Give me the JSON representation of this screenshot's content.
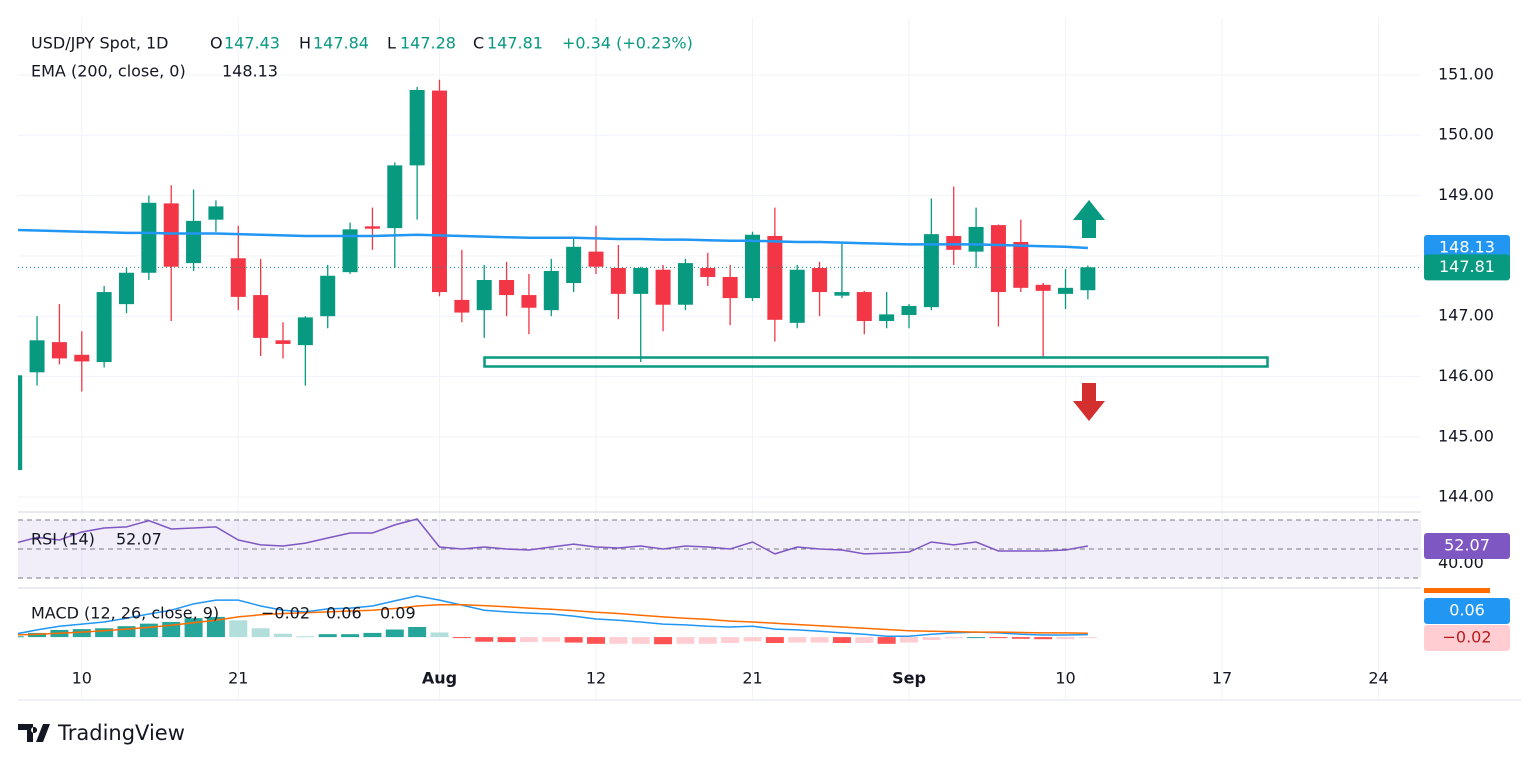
{
  "chart_data": {
    "type": "candlestick",
    "title": "USD/JPY Spot, 1D",
    "ohlc_letters": [
      "O",
      "H",
      "L",
      "C"
    ],
    "change": "+0.34 (+0.23%)",
    "xlim": [
      -0.3,
      62.9
    ],
    "xticks": [
      {
        "value": 3,
        "label": "10"
      },
      {
        "value": 10,
        "label": "21"
      },
      {
        "value": 19,
        "label": "Aug"
      },
      {
        "value": 26,
        "label": "12"
      },
      {
        "value": 33,
        "label": "21"
      },
      {
        "value": 40,
        "label": "Sep"
      },
      {
        "value": 47,
        "label": "10"
      },
      {
        "value": 54,
        "label": "17"
      },
      {
        "value": 61,
        "label": "24"
      }
    ],
    "ylim": [
      143.87,
      151.91
    ],
    "yticks": [
      {
        "value": 144,
        "label": "144.00"
      },
      {
        "value": 145,
        "label": "145.00"
      },
      {
        "value": 146,
        "label": "146.00"
      },
      {
        "value": 147,
        "label": "147.00"
      },
      {
        "value": 148,
        "label": "148.00"
      },
      {
        "value": 149,
        "label": "149.00"
      },
      {
        "value": 150,
        "label": "150.00"
      },
      {
        "value": 151,
        "label": "151.00"
      }
    ],
    "grid": true,
    "up_color": "#089981",
    "down_color": "#f23645",
    "open": [
      144.45,
      146.07,
      146.57,
      146.36,
      146.24,
      147.2,
      147.72,
      148.87,
      147.88,
      148.6,
      147.96,
      147.35,
      146.6,
      146.52,
      147.0,
      147.73,
      148.49,
      148.46,
      149.5,
      150.74,
      147.27,
      147.1,
      147.6,
      147.35,
      147.1,
      147.55,
      148.07,
      147.8,
      147.37,
      147.77,
      147.19,
      147.8,
      147.65,
      147.3,
      148.33,
      146.89,
      147.8,
      147.34,
      147.4,
      146.92,
      147.02,
      147.15,
      148.33,
      148.07,
      148.51,
      148.23,
      147.52,
      147.37,
      147.43
    ],
    "high": [
      146.05,
      147.0,
      147.2,
      146.75,
      147.5,
      147.8,
      149.0,
      149.17,
      149.1,
      148.92,
      148.5,
      147.95,
      146.9,
      147.0,
      147.85,
      148.55,
      148.8,
      149.55,
      150.8,
      150.92,
      148.1,
      147.85,
      147.9,
      147.7,
      147.95,
      148.3,
      148.5,
      148.18,
      147.82,
      147.85,
      147.95,
      148.05,
      147.85,
      148.4,
      148.8,
      147.85,
      147.9,
      148.2,
      147.42,
      147.4,
      147.2,
      148.95,
      149.15,
      148.8,
      148.52,
      148.6,
      147.55,
      147.78,
      147.84
    ],
    "low": [
      144.45,
      145.85,
      146.2,
      145.75,
      146.15,
      147.05,
      147.6,
      146.92,
      147.75,
      148.4,
      147.1,
      146.34,
      146.3,
      145.85,
      146.8,
      147.7,
      148.1,
      147.8,
      148.6,
      147.33,
      146.9,
      146.64,
      147.0,
      146.7,
      147.0,
      147.4,
      147.7,
      146.95,
      146.24,
      146.75,
      147.1,
      147.5,
      146.85,
      147.25,
      146.58,
      146.8,
      147.0,
      147.3,
      146.7,
      146.8,
      146.8,
      147.1,
      147.85,
      147.8,
      146.83,
      147.4,
      146.3,
      147.12,
      147.28
    ],
    "close": [
      146.02,
      146.6,
      146.3,
      146.25,
      147.4,
      147.72,
      148.88,
      147.82,
      148.58,
      148.82,
      147.32,
      146.64,
      146.54,
      146.98,
      147.67,
      148.44,
      148.45,
      149.5,
      150.75,
      147.4,
      147.06,
      147.6,
      147.35,
      147.14,
      147.75,
      148.15,
      147.82,
      147.37,
      147.8,
      147.19,
      147.88,
      147.65,
      147.3,
      148.35,
      146.94,
      147.77,
      147.4,
      147.4,
      146.92,
      147.03,
      147.17,
      148.36,
      148.1,
      148.48,
      147.4,
      147.47,
      147.42,
      147.47,
      147.81
    ],
    "ema": {
      "name": "EMA (200, close, 0)",
      "color": "#2196f3",
      "values": [
        148.43,
        148.42,
        148.41,
        148.4,
        148.39,
        148.38,
        148.38,
        148.37,
        148.37,
        148.37,
        148.36,
        148.35,
        148.34,
        148.33,
        148.33,
        148.33,
        148.33,
        148.34,
        148.35,
        148.34,
        148.33,
        148.32,
        148.31,
        148.3,
        148.3,
        148.3,
        148.29,
        148.28,
        148.28,
        148.27,
        148.27,
        148.26,
        148.25,
        148.25,
        148.24,
        148.23,
        148.23,
        148.22,
        148.21,
        148.2,
        148.19,
        148.19,
        148.19,
        148.19,
        148.18,
        148.17,
        148.16,
        148.15,
        148.13
      ]
    },
    "rsi": {
      "name": "RSI (14)",
      "color": "#7e57c2",
      "ylim": [
        24.5,
        75.5
      ],
      "yticks": [
        {
          "value": 40,
          "label": "40.00"
        }
      ],
      "levels": [
        70,
        50,
        30
      ],
      "values": [
        54,
        58,
        56.2,
        61.7,
        64.5,
        65.2,
        69.5,
        63.8,
        64.5,
        65.2,
        56.2,
        52.8,
        52.1,
        54.1,
        57.6,
        61.0,
        61.0,
        66.6,
        70.7,
        51.4,
        50.0,
        51.4,
        50.0,
        49.3,
        51.4,
        53.4,
        51.4,
        50.7,
        52.1,
        50.0,
        52.1,
        51.4,
        50.0,
        54.8,
        46.6,
        51.4,
        50.0,
        49.3,
        46.6,
        47.2,
        47.9,
        54.8,
        52.8,
        54.8,
        48.6,
        48.6,
        48.6,
        49.3,
        52.07
      ]
    },
    "macd": {
      "name": "MACD (12, 26, close, 9)",
      "ylim": [
        -0.83,
        1.12
      ],
      "histogram": {
        "colors": [
          "#26a69a",
          "#b2dfdb",
          "#ff5252",
          "#ffcdd2"
        ],
        "last_label": "−0.02",
        "values": [
          0.02,
          0.1,
          0.17,
          0.19,
          0.21,
          0.26,
          0.32,
          0.36,
          0.45,
          0.48,
          0.4,
          0.21,
          0.08,
          0.02,
          0.07,
          0.07,
          0.1,
          0.18,
          0.24,
          0.11,
          -0.01,
          -0.11,
          -0.12,
          -0.12,
          -0.11,
          -0.13,
          -0.16,
          -0.16,
          -0.16,
          -0.17,
          -0.16,
          -0.16,
          -0.14,
          -0.1,
          -0.14,
          -0.13,
          -0.13,
          -0.14,
          -0.14,
          -0.16,
          -0.13,
          -0.07,
          -0.03,
          0.0,
          -0.02,
          -0.04,
          -0.05,
          -0.05,
          -0.02
        ]
      },
      "macd": {
        "color": "#2196f3",
        "values": [
          0.07,
          0.17,
          0.26,
          0.31,
          0.36,
          0.45,
          0.55,
          0.64,
          0.79,
          0.88,
          0.88,
          0.74,
          0.64,
          0.6,
          0.67,
          0.69,
          0.74,
          0.86,
          0.98,
          0.88,
          0.76,
          0.64,
          0.6,
          0.57,
          0.55,
          0.5,
          0.43,
          0.4,
          0.36,
          0.31,
          0.29,
          0.26,
          0.24,
          0.26,
          0.19,
          0.17,
          0.14,
          0.1,
          0.07,
          0.02,
          0.02,
          0.07,
          0.1,
          0.12,
          0.1,
          0.07,
          0.05,
          0.05,
          0.06
        ]
      },
      "signal": {
        "color": "#ff6d00",
        "values": [
          0.05,
          0.07,
          0.09,
          0.12,
          0.15,
          0.19,
          0.23,
          0.28,
          0.34,
          0.4,
          0.48,
          0.53,
          0.56,
          0.58,
          0.6,
          0.62,
          0.64,
          0.68,
          0.74,
          0.77,
          0.77,
          0.75,
          0.72,
          0.69,
          0.66,
          0.63,
          0.59,
          0.56,
          0.52,
          0.48,
          0.45,
          0.42,
          0.38,
          0.36,
          0.33,
          0.3,
          0.27,
          0.24,
          0.21,
          0.18,
          0.15,
          0.14,
          0.13,
          0.12,
          0.12,
          0.11,
          0.1,
          0.1,
          0.09
        ]
      }
    },
    "brand": "TradingView"
  }
}
